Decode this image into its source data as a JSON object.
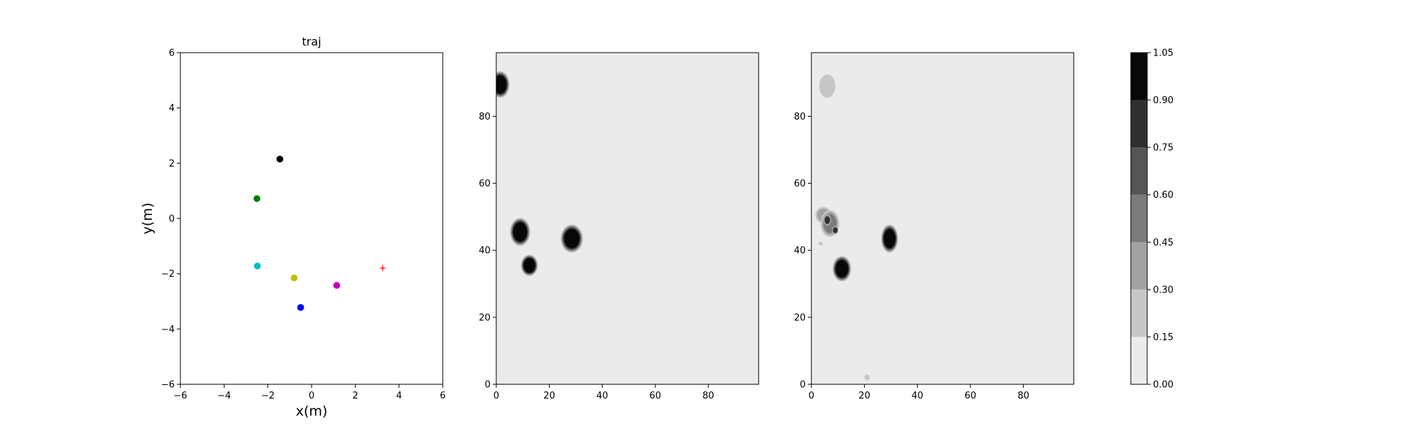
{
  "chart_data": [
    {
      "type": "scatter",
      "title": "traj",
      "xlabel": "x(m)",
      "ylabel": "y(m)",
      "xlim": [
        -6,
        6
      ],
      "ylim": [
        -6,
        6
      ],
      "xticks": [
        "−6",
        "−4",
        "−2",
        "0",
        "2",
        "4",
        "6"
      ],
      "yticks": [
        "−6",
        "−4",
        "−2",
        "0",
        "2",
        "4",
        "6"
      ],
      "grid": false,
      "points": [
        {
          "x": -1.45,
          "y": 2.15,
          "color": "#000000",
          "marker": "circle"
        },
        {
          "x": -2.5,
          "y": 0.72,
          "color": "#008000",
          "marker": "circle"
        },
        {
          "x": -2.48,
          "y": -1.72,
          "color": "#00bfbf",
          "marker": "circle"
        },
        {
          "x": -0.8,
          "y": -2.15,
          "color": "#bfbf00",
          "marker": "circle"
        },
        {
          "x": 1.15,
          "y": -2.42,
          "color": "#bf00bf",
          "marker": "circle"
        },
        {
          "x": -0.5,
          "y": -3.22,
          "color": "#0000ff",
          "marker": "circle"
        },
        {
          "x": 3.25,
          "y": -1.8,
          "color": "#ff0000",
          "marker": "plus"
        }
      ]
    },
    {
      "type": "heatmap",
      "title": "",
      "xlim": [
        0,
        99
      ],
      "ylim": [
        0,
        99
      ],
      "xticks": [
        "0",
        "20",
        "40",
        "60",
        "80"
      ],
      "yticks": [
        "0",
        "20",
        "40",
        "60",
        "80"
      ],
      "background_level": 0.0,
      "blobs": [
        {
          "cx": 1.5,
          "cy": 89.5,
          "rx": 3.5,
          "ry": 4.0,
          "level": 1.0
        },
        {
          "cx": 9.0,
          "cy": 45.5,
          "rx": 3.8,
          "ry": 4.2,
          "level": 1.0
        },
        {
          "cx": 12.5,
          "cy": 35.5,
          "rx": 3.2,
          "ry": 3.2,
          "level": 1.0
        },
        {
          "cx": 28.5,
          "cy": 43.5,
          "rx": 4.2,
          "ry": 4.2,
          "level": 1.0
        }
      ]
    },
    {
      "type": "heatmap",
      "title": "",
      "xlim": [
        0,
        99
      ],
      "ylim": [
        0,
        99
      ],
      "xticks": [
        "0",
        "20",
        "40",
        "60",
        "80"
      ],
      "yticks": [
        "0",
        "20",
        "40",
        "60",
        "80"
      ],
      "background_level": 0.0,
      "blobs": [
        {
          "cx": 6.0,
          "cy": 89.0,
          "rx": 3.0,
          "ry": 3.5,
          "level": 0.2
        },
        {
          "cx": 4.5,
          "cy": 50.5,
          "rx": 3.0,
          "ry": 2.5,
          "level": 0.35
        },
        {
          "cx": 7.0,
          "cy": 48.0,
          "rx": 3.5,
          "ry": 4.0,
          "level": 0.5
        },
        {
          "cx": 6.0,
          "cy": 49.0,
          "rx": 1.4,
          "ry": 1.6,
          "level": 0.8
        },
        {
          "cx": 9.0,
          "cy": 46.0,
          "rx": 1.2,
          "ry": 1.2,
          "level": 0.75
        },
        {
          "cx": 3.5,
          "cy": 42.0,
          "rx": 0.8,
          "ry": 0.6,
          "level": 0.15
        },
        {
          "cx": 11.5,
          "cy": 34.5,
          "rx": 3.5,
          "ry": 3.8,
          "level": 1.0
        },
        {
          "cx": 29.5,
          "cy": 43.5,
          "rx": 3.2,
          "ry": 4.2,
          "level": 1.0
        },
        {
          "cx": 21.0,
          "cy": 2.0,
          "rx": 1.0,
          "ry": 0.9,
          "level": 0.25
        }
      ]
    }
  ],
  "colorbar": {
    "levels": [
      0.0,
      0.15,
      0.3,
      0.45,
      0.6,
      0.75,
      0.9,
      1.05
    ],
    "tick_labels": [
      "0.00",
      "0.15",
      "0.30",
      "0.45",
      "0.60",
      "0.75",
      "0.90",
      "1.05"
    ],
    "colors": [
      "#ebebeb",
      "#c7c7c7",
      "#a2a2a2",
      "#7b7b7b",
      "#555555",
      "#2f2f2f",
      "#080808"
    ]
  }
}
